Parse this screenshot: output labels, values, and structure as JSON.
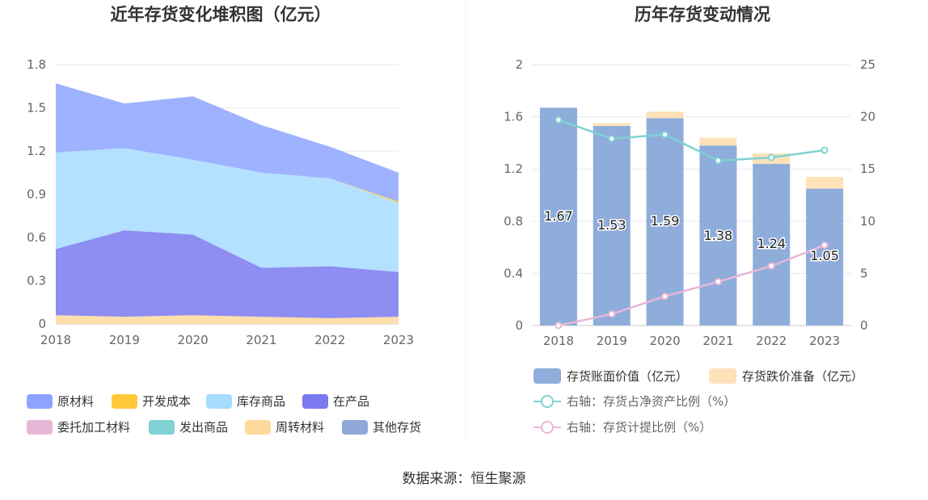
{
  "source_text": "数据来源：恒生聚源",
  "chart_data": [
    {
      "type": "area",
      "title": "近年存货变化堆积图（亿元）",
      "categories": [
        "2018",
        "2019",
        "2020",
        "2021",
        "2022",
        "2023"
      ],
      "ylim": [
        0,
        1.8
      ],
      "yticks": [
        "0",
        "0.3",
        "0.6",
        "0.9",
        "1.2",
        "1.5",
        "1.8"
      ],
      "grid": true,
      "legend_position": "bottom",
      "series": [
        {
          "name": "原材料",
          "color": "#8ea4ff",
          "values": [
            0.48,
            0.31,
            0.44,
            0.33,
            0.22,
            0.2
          ]
        },
        {
          "name": "开发成本",
          "color": "#ffc83a",
          "values": [
            0,
            0,
            0,
            0,
            0,
            0.01
          ]
        },
        {
          "name": "库存商品",
          "color": "#a6dcff",
          "values": [
            0.67,
            0.57,
            0.52,
            0.66,
            0.61,
            0.48
          ]
        },
        {
          "name": "在产品",
          "color": "#7a79f0",
          "values": [
            0.46,
            0.6,
            0.56,
            0.34,
            0.36,
            0.31
          ]
        },
        {
          "name": "委托加工材料",
          "color": "#e8b7d8",
          "values": [
            0,
            0,
            0,
            0,
            0,
            0
          ]
        },
        {
          "name": "发出商品",
          "color": "#7fd1d3",
          "values": [
            0,
            0,
            0,
            0,
            0,
            0
          ]
        },
        {
          "name": "周转材料",
          "color": "#ffd99c",
          "values": [
            0.06,
            0.05,
            0.06,
            0.05,
            0.04,
            0.05
          ]
        },
        {
          "name": "其他存货",
          "color": "#8fa8d8",
          "values": [
            0,
            0,
            0,
            0,
            0,
            0
          ]
        }
      ]
    },
    {
      "type": "bar",
      "title": "历年存货变动情况",
      "categories": [
        "2018",
        "2019",
        "2020",
        "2021",
        "2022",
        "2023"
      ],
      "ylim": [
        0,
        2
      ],
      "yticks": [
        "0",
        "0.4",
        "0.8",
        "1.2",
        "1.6",
        "2"
      ],
      "y2lim": [
        0,
        25
      ],
      "y2ticks": [
        "0",
        "5",
        "10",
        "15",
        "20",
        "25"
      ],
      "grid": true,
      "legend_position": "bottom",
      "series": [
        {
          "name": "存货账面价值（亿元）",
          "color": "#8faddb",
          "values": [
            1.67,
            1.53,
            1.59,
            1.38,
            1.24,
            1.05
          ],
          "labels": [
            "1.67",
            "1.53",
            "1.59",
            "1.38",
            "1.24",
            "1.05"
          ]
        },
        {
          "name": "存货跌价准备（亿元）",
          "color": "#ffe2b8",
          "values": [
            0,
            0.02,
            0.05,
            0.06,
            0.08,
            0.09
          ]
        },
        {
          "name": "右轴：存货占净资产比例（%）",
          "color": "#7fd1d3",
          "axis": "right",
          "values": [
            19.7,
            17.9,
            18.3,
            15.8,
            16.1,
            16.8
          ]
        },
        {
          "name": "右轴：存货计提比例（%）",
          "color": "#e8b7d8",
          "axis": "right",
          "values": [
            0.0,
            1.1,
            2.8,
            4.2,
            5.7,
            7.7
          ]
        }
      ]
    }
  ]
}
